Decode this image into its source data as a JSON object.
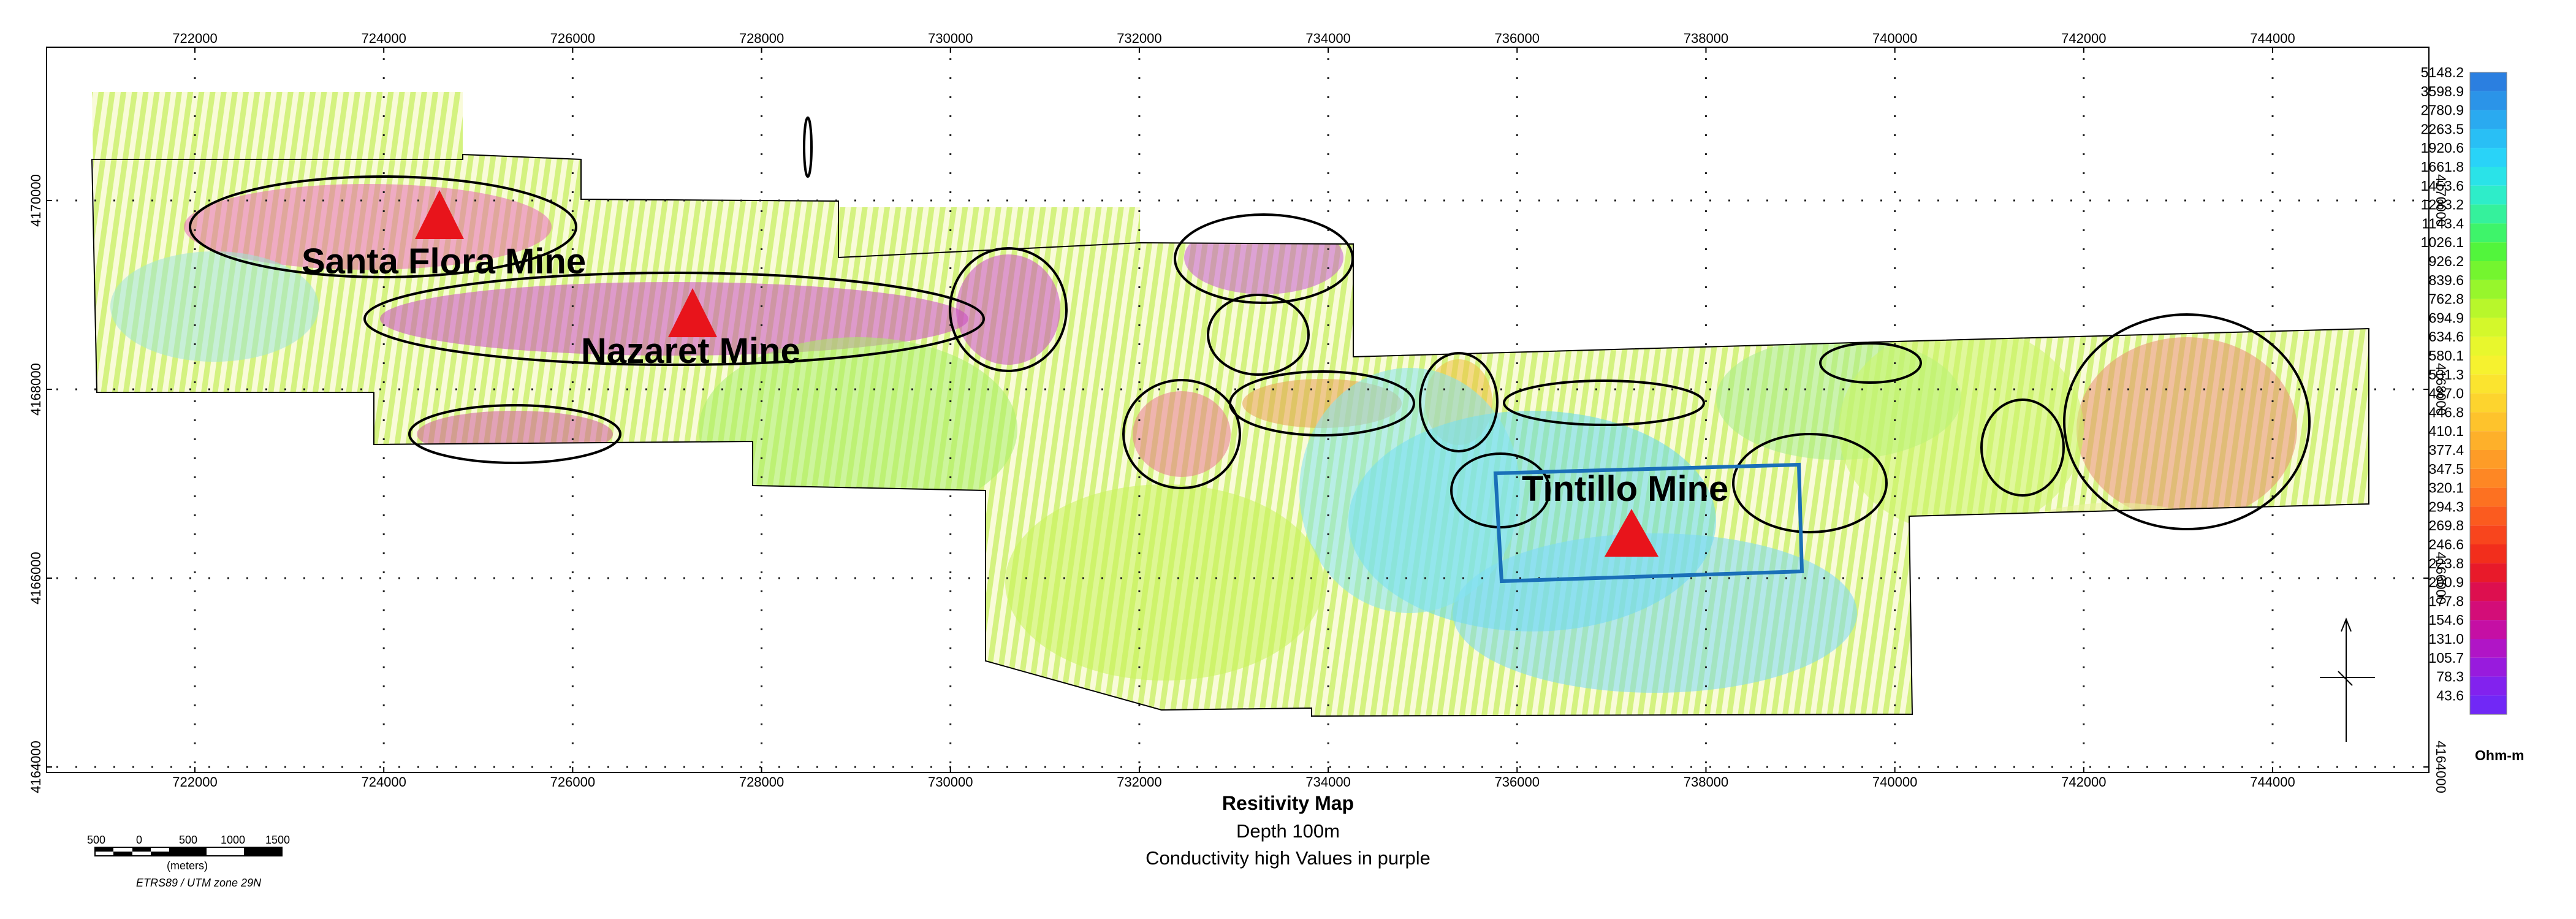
{
  "map": {
    "x_ticks": [
      "722000",
      "724000",
      "726000",
      "728000",
      "730000",
      "732000",
      "734000",
      "736000",
      "738000",
      "740000",
      "742000",
      "744000"
    ],
    "y_ticks": [
      "4170000",
      "4168000",
      "4166000",
      "4164000"
    ],
    "mines": [
      {
        "name": "Santa Flora Mine"
      },
      {
        "name": "Nazaret Mine"
      },
      {
        "name": "Tintillo Mine"
      }
    ],
    "colors": {
      "mine_marker": "#e8141b",
      "anomaly_outline": "#000000",
      "survey_outline": "#1a6fb8"
    }
  },
  "legend": {
    "unit": "Ohm-m",
    "values": [
      "5148.2",
      "3598.9",
      "2780.9",
      "2263.5",
      "1920.6",
      "1661.8",
      "1453.6",
      "1283.2",
      "1143.4",
      "1026.1",
      "926.2",
      "839.6",
      "762.8",
      "694.9",
      "634.6",
      "580.1",
      "531.3",
      "487.0",
      "446.8",
      "410.1",
      "377.4",
      "347.5",
      "320.1",
      "294.3",
      "269.8",
      "246.6",
      "223.8",
      "200.9",
      "177.8",
      "154.6",
      "131.0",
      "105.7",
      "78.3",
      "43.6"
    ],
    "colors": [
      "#2b7fe0",
      "#2b94e8",
      "#2aaaf0",
      "#29bff5",
      "#29d3f8",
      "#2ae3e8",
      "#2eedc9",
      "#35f19c",
      "#3ef46a",
      "#52f53c",
      "#74f52f",
      "#97f62c",
      "#b8f72b",
      "#d4f82b",
      "#e8f72d",
      "#f6f22f",
      "#fbe42f",
      "#fdd42e",
      "#fec32c",
      "#feb02a",
      "#fe9c27",
      "#fe8724",
      "#fd7121",
      "#fb5b1f",
      "#f8451d",
      "#f22e1c",
      "#e81a2a",
      "#dd0f4f",
      "#d30d78",
      "#c50fa4",
      "#b015c6",
      "#981bdd",
      "#8222ee",
      "#7128f6"
    ]
  },
  "caption": {
    "title": "Resitivity Map",
    "subtitle1": "Depth 100m",
    "subtitle2": "Conductivity high Values in purple"
  },
  "scale_bar": {
    "labels": [
      "500",
      "0",
      "500",
      "1000",
      "1500"
    ],
    "unit": "(meters)",
    "crs": "ETRS89 / UTM zone 29N"
  }
}
